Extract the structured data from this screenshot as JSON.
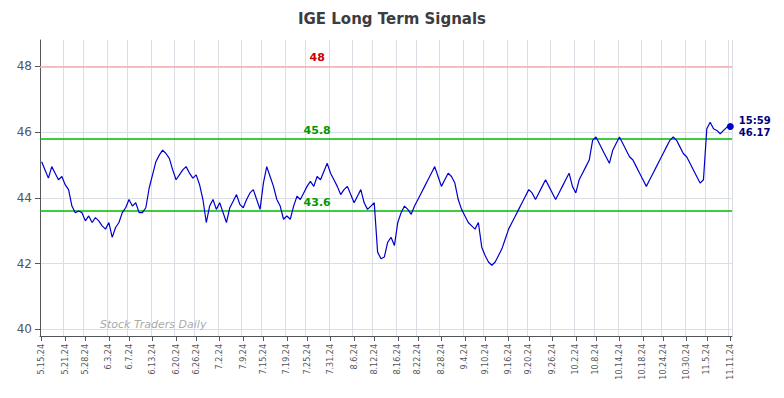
{
  "chart_data": {
    "type": "line",
    "title": "IGE Long Term Signals",
    "categories": [
      "5.15.24",
      null,
      null,
      null,
      null,
      null,
      null,
      "5.21.24",
      null,
      null,
      null,
      null,
      null,
      "5.28.24",
      null,
      null,
      null,
      null,
      null,
      null,
      "6.3.24",
      null,
      null,
      null,
      null,
      null,
      "6.7.24",
      null,
      null,
      null,
      null,
      null,
      null,
      "6.13.24",
      null,
      null,
      null,
      null,
      null,
      null,
      "6.20.24",
      null,
      null,
      null,
      null,
      null,
      "6.26.24",
      null,
      null,
      null,
      null,
      null,
      null,
      "7.2.24",
      null,
      null,
      null,
      null,
      null,
      null,
      "7.9.24",
      null,
      null,
      null,
      null,
      null,
      "7.15.24",
      null,
      null,
      null,
      null,
      null,
      null,
      "7.19.24",
      null,
      null,
      null,
      null,
      null,
      "7.25.24",
      null,
      null,
      null,
      null,
      null,
      null,
      "7.31.24",
      null,
      null,
      null,
      null,
      null,
      null,
      "8.6.24",
      null,
      null,
      null,
      null,
      null,
      "8.12.24",
      null,
      null,
      null,
      null,
      null,
      null,
      "8.16.24",
      null,
      null,
      null,
      null,
      null,
      "8.22.24",
      null,
      null,
      null,
      null,
      null,
      null,
      "8.28.24",
      null,
      null,
      null,
      null,
      null,
      null,
      "9.4.24",
      null,
      null,
      null,
      null,
      null,
      "9.10.24",
      null,
      null,
      null,
      null,
      null,
      null,
      "9.16.24",
      null,
      null,
      null,
      null,
      null,
      "9.20.24",
      null,
      null,
      null,
      null,
      null,
      null,
      "9.26.24",
      null,
      null,
      null,
      null,
      null,
      null,
      "10.2.24",
      null,
      null,
      null,
      null,
      null,
      "10.8.24",
      null,
      null,
      null,
      null,
      null,
      null,
      "10.14.24",
      null,
      null,
      null,
      null,
      null,
      null,
      "10.18.24",
      null,
      null,
      null,
      null,
      null,
      "10.24.24",
      null,
      null,
      null,
      null,
      null,
      null,
      "10.30.24",
      null,
      null,
      null,
      null,
      null,
      "11.5.24",
      null,
      null,
      null,
      null,
      null,
      null,
      "11.11.24"
    ],
    "values": [
      45.1,
      44.85,
      44.6,
      44.95,
      44.75,
      44.55,
      44.65,
      44.4,
      44.25,
      43.75,
      43.55,
      43.6,
      43.55,
      43.3,
      43.45,
      43.25,
      43.4,
      43.3,
      43.15,
      43.05,
      43.25,
      42.8,
      43.1,
      43.25,
      43.55,
      43.7,
      43.95,
      43.75,
      43.85,
      43.55,
      43.55,
      43.7,
      44.3,
      44.7,
      45.1,
      45.3,
      45.45,
      45.35,
      45.2,
      44.85,
      44.55,
      44.7,
      44.85,
      44.95,
      44.75,
      44.6,
      44.7,
      44.4,
      43.95,
      43.25,
      43.75,
      43.95,
      43.65,
      43.85,
      43.55,
      43.25,
      43.7,
      43.9,
      44.1,
      43.8,
      43.7,
      43.95,
      44.15,
      44.25,
      43.95,
      43.65,
      44.45,
      44.95,
      44.65,
      44.35,
      43.95,
      43.75,
      43.35,
      43.45,
      43.35,
      43.75,
      44.05,
      43.95,
      44.15,
      44.35,
      44.5,
      44.35,
      44.65,
      44.55,
      44.8,
      45.05,
      44.75,
      44.55,
      44.35,
      44.1,
      44.25,
      44.35,
      44.1,
      43.85,
      44.05,
      44.25,
      43.85,
      43.65,
      43.75,
      43.85,
      42.35,
      42.15,
      42.2,
      42.65,
      42.8,
      42.55,
      43.25,
      43.55,
      43.75,
      43.65,
      43.5,
      43.75,
      43.95,
      44.15,
      44.35,
      44.55,
      44.75,
      44.95,
      44.65,
      44.35,
      44.55,
      44.75,
      44.65,
      44.45,
      43.95,
      43.65,
      43.45,
      43.25,
      43.15,
      43.05,
      43.25,
      42.5,
      42.25,
      42.05,
      41.95,
      42.05,
      42.25,
      42.45,
      42.75,
      43.05,
      43.25,
      43.45,
      43.65,
      43.85,
      44.05,
      44.25,
      44.15,
      43.95,
      44.15,
      44.35,
      44.55,
      44.35,
      44.15,
      43.95,
      44.15,
      44.35,
      44.55,
      44.75,
      44.35,
      44.15,
      44.55,
      44.75,
      44.95,
      45.15,
      45.75,
      45.85,
      45.65,
      45.45,
      45.25,
      45.05,
      45.45,
      45.65,
      45.85,
      45.65,
      45.45,
      45.25,
      45.15,
      44.95,
      44.75,
      44.55,
      44.35,
      44.55,
      44.75,
      44.95,
      45.15,
      45.35,
      45.55,
      45.75,
      45.85,
      45.75,
      45.55,
      45.35,
      45.25,
      45.05,
      44.85,
      44.65,
      44.45,
      44.55,
      46.1,
      46.3,
      46.1,
      46.05,
      45.95,
      46.05,
      46.15,
      46.17
    ],
    "color": "#0000cc",
    "ylim": [
      39.8,
      48.8
    ],
    "yticks": [
      40,
      42,
      44,
      46,
      48
    ],
    "grid": true,
    "reference_lines": [
      {
        "y": 48,
        "label": "48",
        "color": "#ffaaaa",
        "label_color": "#cc0000"
      },
      {
        "y": 45.8,
        "label": "45.8",
        "color": "#00bb00",
        "label_color": "#009900"
      },
      {
        "y": 43.6,
        "label": "43.6",
        "color": "#00bb00",
        "label_color": "#009900"
      }
    ],
    "annotations": [
      {
        "text": "Stock Traders Daily",
        "color": "#aaaaaa"
      },
      {
        "text": "15:59\n46.17",
        "x": "11.11.24",
        "y": 46.17,
        "color": "#000080"
      }
    ]
  }
}
